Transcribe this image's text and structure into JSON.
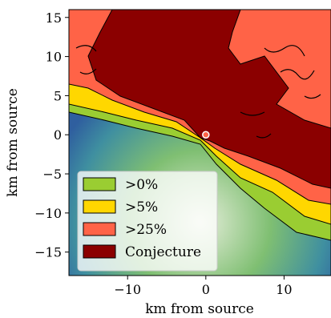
{
  "chart_data": {
    "type": "heatmap",
    "title": "",
    "xlabel": "km from source",
    "ylabel": "km from source",
    "xlim": [
      -17.5,
      16
    ],
    "ylim": [
      -18,
      16
    ],
    "xticks": [
      -10,
      0,
      10
    ],
    "yticks": [
      15,
      10,
      5,
      0,
      -5,
      -10,
      -15
    ],
    "source_point": {
      "x": 0,
      "y": 0
    },
    "legend": {
      "placement": "lower-left",
      "entries": [
        {
          "label": ">0%",
          "color": "#9acd32"
        },
        {
          "label": ">5%",
          "color": "#ffd700"
        },
        {
          "label": ">25%",
          "color": "#ff6347"
        },
        {
          "label": "Conjecture",
          "color": "#8b0000"
        }
      ]
    },
    "colors": {
      "terrain_water": "#3a6fb0",
      "terrain_low": "#6bb36b",
      "terrain_high": "#e8f0d8",
      "outline": "#000000"
    }
  }
}
